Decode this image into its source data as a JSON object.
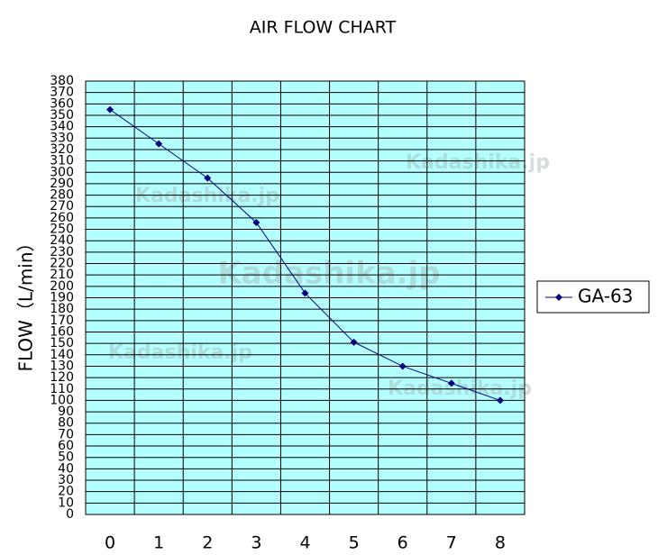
{
  "chart_data": {
    "type": "line",
    "title": "AIR FLOW CHART",
    "y_label": "FLOW（L/min）",
    "categories": [
      "0",
      "1",
      "2",
      "3",
      "4",
      "5",
      "6",
      "7",
      "8"
    ],
    "series": [
      {
        "name": "GA-63",
        "color": "#000080",
        "values": [
          355,
          325,
          295,
          256,
          194,
          151,
          130,
          115,
          100
        ]
      }
    ],
    "ylim": [
      0,
      380
    ],
    "yticks": [
      0,
      10,
      20,
      30,
      40,
      50,
      60,
      70,
      80,
      90,
      100,
      110,
      120,
      130,
      140,
      150,
      160,
      170,
      180,
      190,
      200,
      210,
      220,
      230,
      240,
      250,
      260,
      270,
      280,
      290,
      300,
      310,
      320,
      330,
      340,
      350,
      360,
      370,
      380
    ],
    "grid": true,
    "background": "#b4ffff",
    "legend": "right",
    "watermarks": [
      "Kadashika.jp",
      "Kadashika.jp",
      "Kadashika.jp",
      "Kadashika.jp",
      "Kadashika.jp"
    ]
  }
}
